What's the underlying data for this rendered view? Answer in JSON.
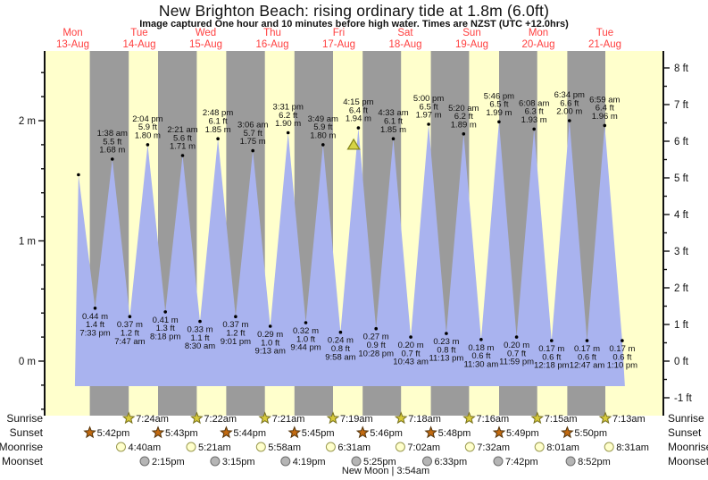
{
  "title": "New Brighton Beach: rising  ordinary tide at 1.8m (6.0ft)",
  "subtitle": "Image captured One hour and 10 minutes before high water. Times are NZST (UTC +12.0hrs)",
  "colors": {
    "day_band": "#ffffcc",
    "night_band": "#9b9b9b",
    "tide_fill": "#a9b3ef",
    "day_label": "#ff4040",
    "axis": "#111111",
    "sunrise_fill": "#d8cb3a",
    "sunrise_stroke": "#77701c",
    "sunset_fill": "#c26a10",
    "sunset_stroke": "#53330a",
    "moonrise_fill": "#ffffcc",
    "moonrise_stroke": "#9a9a50",
    "moonset_fill": "#b5b5b5",
    "moonset_stroke": "#6e6e6e",
    "marker_fill": "#d6d445",
    "marker_stroke": "#8a8a20"
  },
  "chart_data": {
    "type": "area",
    "title": "New Brighton Beach: rising  ordinary tide at 1.8m (6.0ft)",
    "subtitle": "Image captured One hour and 10 minutes before high water. Times are NZST (UTC +12.0hrs)",
    "x_days": [
      {
        "dow": "Mon",
        "date": "13-Aug"
      },
      {
        "dow": "Tue",
        "date": "14-Aug"
      },
      {
        "dow": "Wed",
        "date": "15-Aug"
      },
      {
        "dow": "Thu",
        "date": "16-Aug"
      },
      {
        "dow": "Fri",
        "date": "17-Aug"
      },
      {
        "dow": "Sat",
        "date": "18-Aug"
      },
      {
        "dow": "Sun",
        "date": "19-Aug"
      },
      {
        "dow": "Mon",
        "date": "20-Aug"
      },
      {
        "dow": "Tue",
        "date": "21-Aug"
      }
    ],
    "y_axis_left_ticks": [
      "0 m",
      "1 m",
      "2 m"
    ],
    "y_axis_right_ticks": [
      "-1 ft",
      "0 ft",
      "1 ft",
      "2 ft",
      "3 ft",
      "4 ft",
      "5 ft",
      "6 ft",
      "7 ft",
      "8 ft"
    ],
    "extremes": [
      {
        "type": "high",
        "t": 13.7,
        "m": 1.55,
        "labeled": false,
        "time": "",
        "ft": ""
      },
      {
        "type": "low",
        "t": 19.55,
        "m": 0.44,
        "labeled": true,
        "time": "7:33 pm",
        "ft": "1.4 ft"
      },
      {
        "type": "high",
        "t": 25.63,
        "m": 1.68,
        "labeled": true,
        "time": "1:38 am",
        "ft": "5.5 ft"
      },
      {
        "type": "low",
        "t": 31.78,
        "m": 0.37,
        "labeled": true,
        "time": "7:47 am",
        "ft": "1.2 ft"
      },
      {
        "type": "high",
        "t": 38.07,
        "m": 1.8,
        "labeled": true,
        "time": "2:04 pm",
        "ft": "5.9 ft"
      },
      {
        "type": "low",
        "t": 44.3,
        "m": 0.41,
        "labeled": true,
        "time": "8:18 pm",
        "ft": "1.3 ft"
      },
      {
        "type": "high",
        "t": 50.35,
        "m": 1.71,
        "labeled": true,
        "time": "2:21 am",
        "ft": "5.6 ft"
      },
      {
        "type": "low",
        "t": 56.5,
        "m": 0.33,
        "labeled": true,
        "time": "8:30 am",
        "ft": "1.1 ft"
      },
      {
        "type": "high",
        "t": 62.8,
        "m": 1.85,
        "labeled": true,
        "time": "2:48 pm",
        "ft": "6.1 ft"
      },
      {
        "type": "low",
        "t": 69.02,
        "m": 0.37,
        "labeled": true,
        "time": "9:01 pm",
        "ft": "1.2 ft"
      },
      {
        "type": "high",
        "t": 75.1,
        "m": 1.75,
        "labeled": true,
        "time": "3:06 am",
        "ft": "5.7 ft"
      },
      {
        "type": "low",
        "t": 81.22,
        "m": 0.29,
        "labeled": true,
        "time": "9:13 am",
        "ft": "1.0 ft"
      },
      {
        "type": "high",
        "t": 87.52,
        "m": 1.9,
        "labeled": true,
        "time": "3:31 pm",
        "ft": "6.2 ft"
      },
      {
        "type": "low",
        "t": 93.73,
        "m": 0.32,
        "labeled": true,
        "time": "9:44 pm",
        "ft": "1.0 ft"
      },
      {
        "type": "high",
        "t": 99.82,
        "m": 1.8,
        "labeled": true,
        "time": "3:49 am",
        "ft": "5.9 ft"
      },
      {
        "type": "low",
        "t": 105.97,
        "m": 0.24,
        "labeled": true,
        "time": "9:58 am",
        "ft": "0.8 ft"
      },
      {
        "type": "high",
        "t": 112.25,
        "m": 1.94,
        "labeled": true,
        "time": "4:15 pm",
        "ft": "6.4 ft"
      },
      {
        "type": "low",
        "t": 118.47,
        "m": 0.27,
        "labeled": true,
        "time": "10:28 pm",
        "ft": "0.9 ft"
      },
      {
        "type": "high",
        "t": 124.55,
        "m": 1.85,
        "labeled": true,
        "time": "4:33 am",
        "ft": "6.1 ft"
      },
      {
        "type": "low",
        "t": 130.72,
        "m": 0.2,
        "labeled": true,
        "time": "10:43 am",
        "ft": "0.7 ft"
      },
      {
        "type": "high",
        "t": 137.0,
        "m": 1.97,
        "labeled": true,
        "time": "5:00 pm",
        "ft": "6.5 ft"
      },
      {
        "type": "low",
        "t": 143.22,
        "m": 0.23,
        "labeled": true,
        "time": "11:13 pm",
        "ft": "0.8 ft"
      },
      {
        "type": "high",
        "t": 149.33,
        "m": 1.89,
        "labeled": true,
        "time": "5:20 am",
        "ft": "6.2 ft"
      },
      {
        "type": "low",
        "t": 155.5,
        "m": 0.18,
        "labeled": true,
        "time": "11:30 am",
        "ft": "0.6 ft"
      },
      {
        "type": "high",
        "t": 161.77,
        "m": 1.99,
        "labeled": true,
        "time": "5:46 pm",
        "ft": "6.5 ft"
      },
      {
        "type": "low",
        "t": 167.98,
        "m": 0.2,
        "labeled": true,
        "time": "11:59 pm",
        "ft": "0.7 ft"
      },
      {
        "type": "high",
        "t": 174.13,
        "m": 1.93,
        "labeled": true,
        "time": "6:08 am",
        "ft": "6.3 ft"
      },
      {
        "type": "low",
        "t": 180.3,
        "m": 0.17,
        "labeled": true,
        "time": "12:18 pm",
        "ft": "0.6 ft"
      },
      {
        "type": "high",
        "t": 186.57,
        "m": 2.0,
        "labeled": true,
        "time": "6:34 pm",
        "ft": "6.6 ft"
      },
      {
        "type": "low",
        "t": 192.78,
        "m": 0.17,
        "labeled": true,
        "time": "12:47 am",
        "ft": "0.6 ft"
      },
      {
        "type": "high",
        "t": 198.98,
        "m": 1.96,
        "labeled": true,
        "time": "6:59 am",
        "ft": "6.4 ft"
      },
      {
        "type": "low",
        "t": 205.17,
        "m": 0.17,
        "labeled": true,
        "time": "1:10 pm",
        "ft": "0.6 ft"
      }
    ],
    "current_marker": {
      "t": 110.6,
      "m": 1.8
    },
    "astro": {
      "sunrise": {
        "label": "Sunrise",
        "events": [
          {
            "time": "7:24am",
            "t": 31.4
          },
          {
            "time": "7:22am",
            "t": 55.37
          },
          {
            "time": "7:21am",
            "t": 79.35
          },
          {
            "time": "7:19am",
            "t": 103.32
          },
          {
            "time": "7:18am",
            "t": 127.3
          },
          {
            "time": "7:16am",
            "t": 151.27
          },
          {
            "time": "7:15am",
            "t": 175.25
          },
          {
            "time": "7:13am",
            "t": 199.22
          }
        ]
      },
      "sunset": {
        "label": "Sunset",
        "events": [
          {
            "time": "5:42pm",
            "t": 17.7
          },
          {
            "time": "5:43pm",
            "t": 41.72
          },
          {
            "time": "5:44pm",
            "t": 65.73
          },
          {
            "time": "5:45pm",
            "t": 89.75
          },
          {
            "time": "5:46pm",
            "t": 113.77
          },
          {
            "time": "5:48pm",
            "t": 137.8
          },
          {
            "time": "5:49pm",
            "t": 161.82
          },
          {
            "time": "5:50pm",
            "t": 185.83
          }
        ]
      },
      "moonrise": {
        "label": "Moonrise",
        "events": [
          {
            "time": "4:40am",
            "t": 28.67
          },
          {
            "time": "5:21am",
            "t": 53.35
          },
          {
            "time": "5:58am",
            "t": 77.97
          },
          {
            "time": "6:31am",
            "t": 102.52
          },
          {
            "time": "7:02am",
            "t": 127.03
          },
          {
            "time": "7:32am",
            "t": 151.53
          },
          {
            "time": "8:01am",
            "t": 176.02
          },
          {
            "time": "8:31am",
            "t": 200.52
          }
        ]
      },
      "moonset": {
        "label": "Moonset",
        "events": [
          {
            "time": "2:15pm",
            "t": 37.0
          },
          {
            "time": "3:15pm",
            "t": 61.8
          },
          {
            "time": "4:19pm",
            "t": 86.6
          },
          {
            "time": "5:25pm",
            "t": 111.5
          },
          {
            "time": "6:33pm",
            "t": 136.5
          },
          {
            "time": "7:42pm",
            "t": 161.5
          },
          {
            "time": "8:52pm",
            "t": 187.0
          }
        ]
      }
    },
    "moon_phase": "New Moon | 3:54am"
  }
}
